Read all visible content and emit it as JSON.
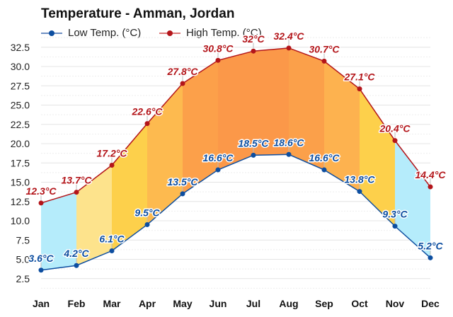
{
  "chart_data": {
    "type": "line",
    "title": "Temperature - Amman, Jordan",
    "categories": [
      "Jan",
      "Feb",
      "Mar",
      "Apr",
      "May",
      "Jun",
      "Jul",
      "Aug",
      "Sep",
      "Oct",
      "Nov",
      "Dec"
    ],
    "series": [
      {
        "name": "Low Temp. (°C)",
        "color": "#0d4ea0",
        "values": [
          3.6,
          4.2,
          6.1,
          9.5,
          13.5,
          16.6,
          18.5,
          18.6,
          16.6,
          13.8,
          9.3,
          5.2
        ],
        "labels": [
          "3.6°C",
          "4.2°C",
          "6.1°C",
          "9.5°C",
          "13.5°C",
          "16.6°C",
          "18.5°C",
          "18.6°C",
          "16.6°C",
          "13.8°C",
          "9.3°C",
          "5.2°C"
        ]
      },
      {
        "name": "High Temp. (°C)",
        "color": "#b3151a",
        "values": [
          12.3,
          13.7,
          17.2,
          22.6,
          27.8,
          30.8,
          32,
          32.4,
          30.7,
          27.1,
          20.4,
          14.4
        ],
        "labels": [
          "12.3°C",
          "13.7°C",
          "17.2°C",
          "22.6°C",
          "27.8°C",
          "30.8°C",
          "32°C",
          "32.4°C",
          "30.7°C",
          "27.1°C",
          "20.4°C",
          "14.4°C"
        ]
      }
    ],
    "band_fill_colors": [
      "#b5ecfb",
      "#fde38c",
      "#fdd04b",
      "#fdba4f",
      "#fca04a",
      "#fb9849",
      "#fb9849",
      "#fba04a",
      "#fdb24f",
      "#fdd04b",
      "#b5ecfb"
    ],
    "ylim": [
      0,
      33.75
    ],
    "yticks": [
      "2.5",
      "5.0",
      "7.5",
      "10.0",
      "12.5",
      "15.0",
      "17.5",
      "20.0",
      "22.5",
      "25.0",
      "27.5",
      "30.0",
      "32.5"
    ],
    "grid": true,
    "legend_placement": "top-left"
  }
}
